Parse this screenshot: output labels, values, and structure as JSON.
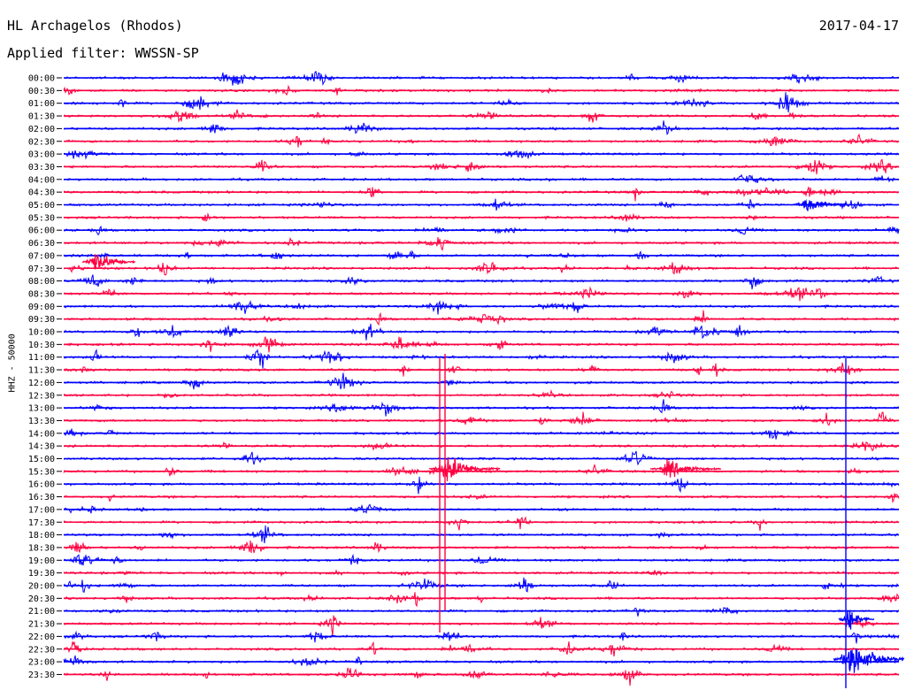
{
  "header": {
    "station": "HL Archagelos (Rhodos)",
    "date": "2017-04-17",
    "filter": "Applied filter: WWSSN-SP"
  },
  "chart_data": {
    "type": "line",
    "title": "HL Archagelos (Rhodos)",
    "ylabel": "HHZ - 50000",
    "xlabel": "",
    "grid": false,
    "trace_colors": [
      "#0000ff",
      "#ff0040"
    ],
    "rows": [
      "00:00",
      "00:30",
      "01:00",
      "01:30",
      "02:00",
      "02:30",
      "03:00",
      "03:30",
      "04:00",
      "04:30",
      "05:00",
      "05:30",
      "06:00",
      "06:30",
      "07:00",
      "07:30",
      "08:00",
      "08:30",
      "09:00",
      "09:30",
      "10:00",
      "10:30",
      "11:00",
      "11:30",
      "12:00",
      "12:30",
      "13:00",
      "13:30",
      "14:00",
      "14:30",
      "15:00",
      "15:30",
      "16:00",
      "16:30",
      "17:00",
      "17:30",
      "18:00",
      "18:30",
      "19:00",
      "19:30",
      "20:00",
      "20:30",
      "21:00",
      "21:30",
      "22:00",
      "22:30",
      "23:00",
      "23:30"
    ]
  }
}
